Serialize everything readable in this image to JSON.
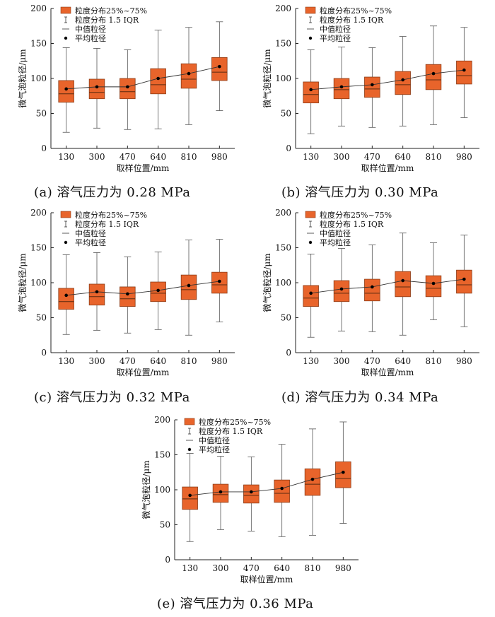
{
  "colors": {
    "box": "#e8642b",
    "box_stroke": "#8a3a15",
    "axis": "#222222",
    "mean_line": "#333333"
  },
  "legend": {
    "box": "粒度分布25%~75%",
    "whisker": "粒度分布 1.5 IQR",
    "median": "中值粒径",
    "mean": "平均粒径"
  },
  "chart_data": [
    {
      "type": "box",
      "caption": "(a) 溶气压力为 0.28 MPa",
      "xlabel": "取样位置/mm",
      "ylabel": "微气泡粒径/μm",
      "ylim": [
        0,
        200
      ],
      "yticks": [
        "0",
        "50",
        "100",
        "150",
        "200"
      ],
      "categories": [
        "130",
        "300",
        "470",
        "640",
        "810",
        "980"
      ],
      "boxes": [
        {
          "min": 23,
          "q1": 66,
          "median": 78,
          "q3": 97,
          "max": 144,
          "mean": 85
        },
        {
          "min": 29,
          "q1": 71,
          "median": 80,
          "q3": 99,
          "max": 143,
          "mean": 88
        },
        {
          "min": 27,
          "q1": 71,
          "median": 81,
          "q3": 100,
          "max": 141,
          "mean": 88
        },
        {
          "min": 28,
          "q1": 78,
          "median": 91,
          "q3": 114,
          "max": 169,
          "mean": 100
        },
        {
          "min": 34,
          "q1": 86,
          "median": 99,
          "q3": 121,
          "max": 173,
          "mean": 107
        },
        {
          "min": 54,
          "q1": 97,
          "median": 109,
          "q3": 130,
          "max": 181,
          "mean": 117
        }
      ]
    },
    {
      "type": "box",
      "caption": "(b) 溶气压力为 0.30 MPa",
      "xlabel": "取样位置/mm",
      "ylabel": "微气泡粒径/μm",
      "ylim": [
        0,
        200
      ],
      "yticks": [
        "0",
        "50",
        "100",
        "150",
        "200"
      ],
      "categories": [
        "130",
        "300",
        "470",
        "640",
        "810",
        "980"
      ],
      "boxes": [
        {
          "min": 21,
          "q1": 65,
          "median": 77,
          "q3": 95,
          "max": 141,
          "mean": 84
        },
        {
          "min": 32,
          "q1": 71,
          "median": 84,
          "q3": 100,
          "max": 145,
          "mean": 88
        },
        {
          "min": 30,
          "q1": 73,
          "median": 85,
          "q3": 102,
          "max": 144,
          "mean": 91
        },
        {
          "min": 32,
          "q1": 77,
          "median": 91,
          "q3": 110,
          "max": 160,
          "mean": 98
        },
        {
          "min": 34,
          "q1": 84,
          "median": 98,
          "q3": 120,
          "max": 175,
          "mean": 107
        },
        {
          "min": 44,
          "q1": 92,
          "median": 104,
          "q3": 125,
          "max": 173,
          "mean": 112
        }
      ]
    },
    {
      "type": "box",
      "caption": "(c) 溶气压力为 0.32 MPa",
      "xlabel": "取样位置/mm",
      "ylabel": "微气泡粒径/μm",
      "ylim": [
        0,
        200
      ],
      "yticks": [
        "0",
        "50",
        "100",
        "150",
        "200"
      ],
      "categories": [
        "130",
        "300",
        "470",
        "640",
        "810",
        "980"
      ],
      "boxes": [
        {
          "min": 26,
          "q1": 62,
          "median": 73,
          "q3": 92,
          "max": 140,
          "mean": 82
        },
        {
          "min": 32,
          "q1": 68,
          "median": 80,
          "q3": 98,
          "max": 143,
          "mean": 87
        },
        {
          "min": 28,
          "q1": 66,
          "median": 77,
          "q3": 94,
          "max": 137,
          "mean": 84
        },
        {
          "min": 33,
          "q1": 73,
          "median": 85,
          "q3": 101,
          "max": 144,
          "mean": 89
        },
        {
          "min": 25,
          "q1": 76,
          "median": 90,
          "q3": 111,
          "max": 161,
          "mean": 96
        },
        {
          "min": 44,
          "q1": 85,
          "median": 97,
          "q3": 115,
          "max": 162,
          "mean": 102
        }
      ]
    },
    {
      "type": "box",
      "caption": "(d) 溶气压力为 0.34 MPa",
      "xlabel": "取样位置/mm",
      "ylabel": "微气泡粒径/μm",
      "ylim": [
        0,
        200
      ],
      "yticks": [
        "0",
        "50",
        "100",
        "150",
        "200"
      ],
      "categories": [
        "130",
        "300",
        "470",
        "640",
        "810",
        "980"
      ],
      "boxes": [
        {
          "min": 22,
          "q1": 66,
          "median": 78,
          "q3": 96,
          "max": 141,
          "mean": 85
        },
        {
          "min": 31,
          "q1": 73,
          "median": 85,
          "q3": 103,
          "max": 149,
          "mean": 91
        },
        {
          "min": 30,
          "q1": 74,
          "median": 85,
          "q3": 105,
          "max": 154,
          "mean": 94
        },
        {
          "min": 25,
          "q1": 80,
          "median": 94,
          "q3": 116,
          "max": 171,
          "mean": 103
        },
        {
          "min": 47,
          "q1": 80,
          "median": 92,
          "q3": 110,
          "max": 157,
          "mean": 99
        },
        {
          "min": 37,
          "q1": 85,
          "median": 97,
          "q3": 118,
          "max": 168,
          "mean": 105
        }
      ]
    },
    {
      "type": "box",
      "caption": "(e) 溶气压力为 0.36 MPa",
      "xlabel": "取样位置/mm",
      "ylabel": "微气泡粒径/μm",
      "ylim": [
        0,
        200
      ],
      "yticks": [
        "0",
        "50",
        "100",
        "150",
        "200"
      ],
      "categories": [
        "130",
        "300",
        "470",
        "640",
        "810",
        "980"
      ],
      "boxes": [
        {
          "min": 26,
          "q1": 72,
          "median": 87,
          "q3": 104,
          "max": 152,
          "mean": 92
        },
        {
          "min": 43,
          "q1": 82,
          "median": 93,
          "q3": 108,
          "max": 148,
          "mean": 97
        },
        {
          "min": 41,
          "q1": 81,
          "median": 92,
          "q3": 107,
          "max": 147,
          "mean": 97
        },
        {
          "min": 33,
          "q1": 82,
          "median": 95,
          "q3": 114,
          "max": 165,
          "mean": 102
        },
        {
          "min": 35,
          "q1": 92,
          "median": 108,
          "q3": 130,
          "max": 187,
          "mean": 115
        },
        {
          "min": 52,
          "q1": 103,
          "median": 116,
          "q3": 140,
          "max": 197,
          "mean": 125
        }
      ]
    }
  ]
}
